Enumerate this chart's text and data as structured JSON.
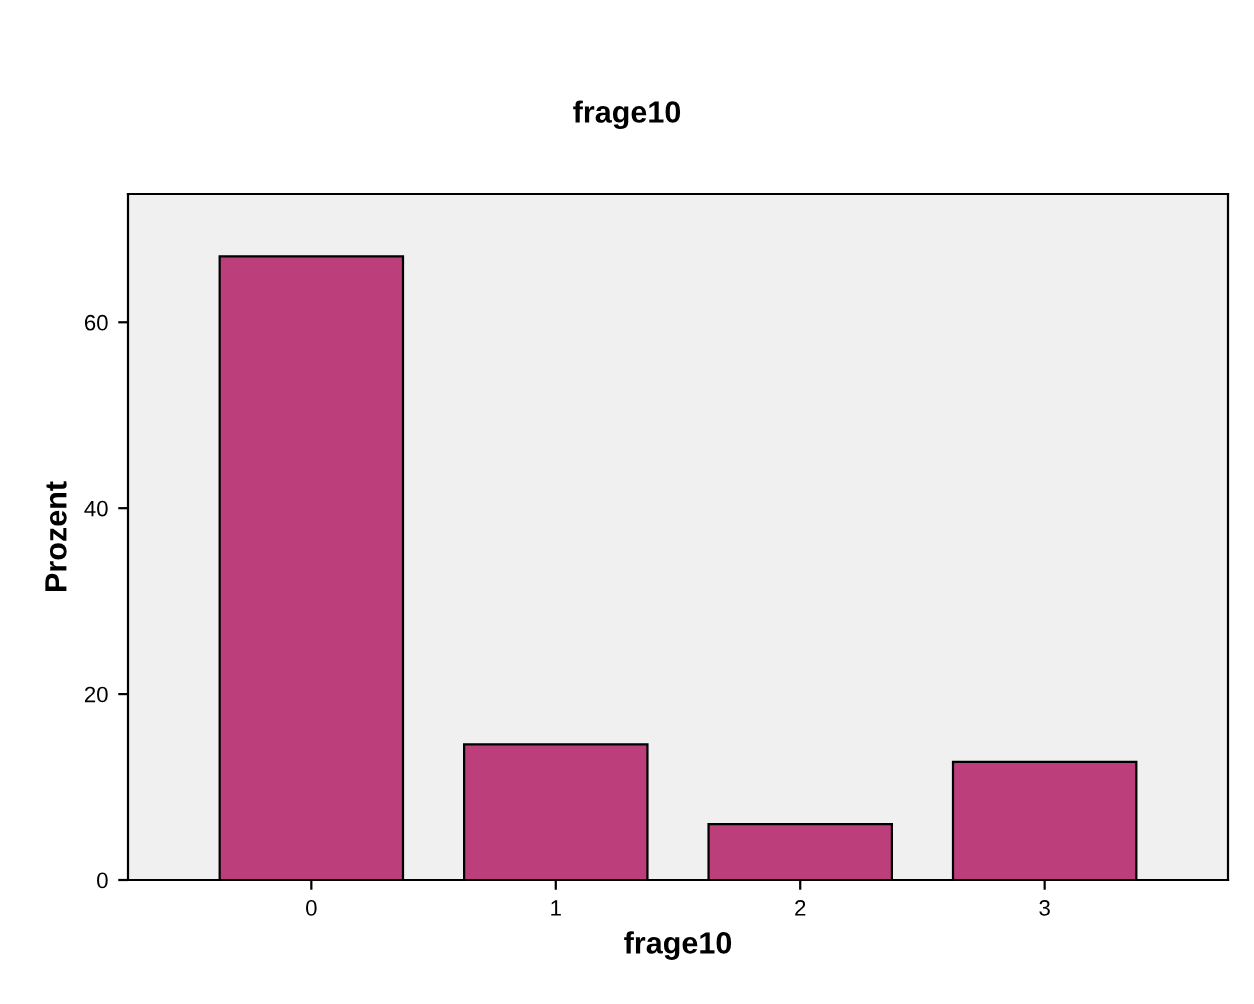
{
  "chart_data": {
    "type": "bar",
    "title": "frage10",
    "xlabel": "frage10",
    "ylabel": "Prozent",
    "categories": [
      "0",
      "1",
      "2",
      "3"
    ],
    "values": [
      67.1,
      14.6,
      6.0,
      12.7
    ],
    "color": "#bc3f7c",
    "ylim": [
      0,
      73.8
    ],
    "yticks": [
      0,
      20,
      40,
      60
    ],
    "grid": false
  }
}
